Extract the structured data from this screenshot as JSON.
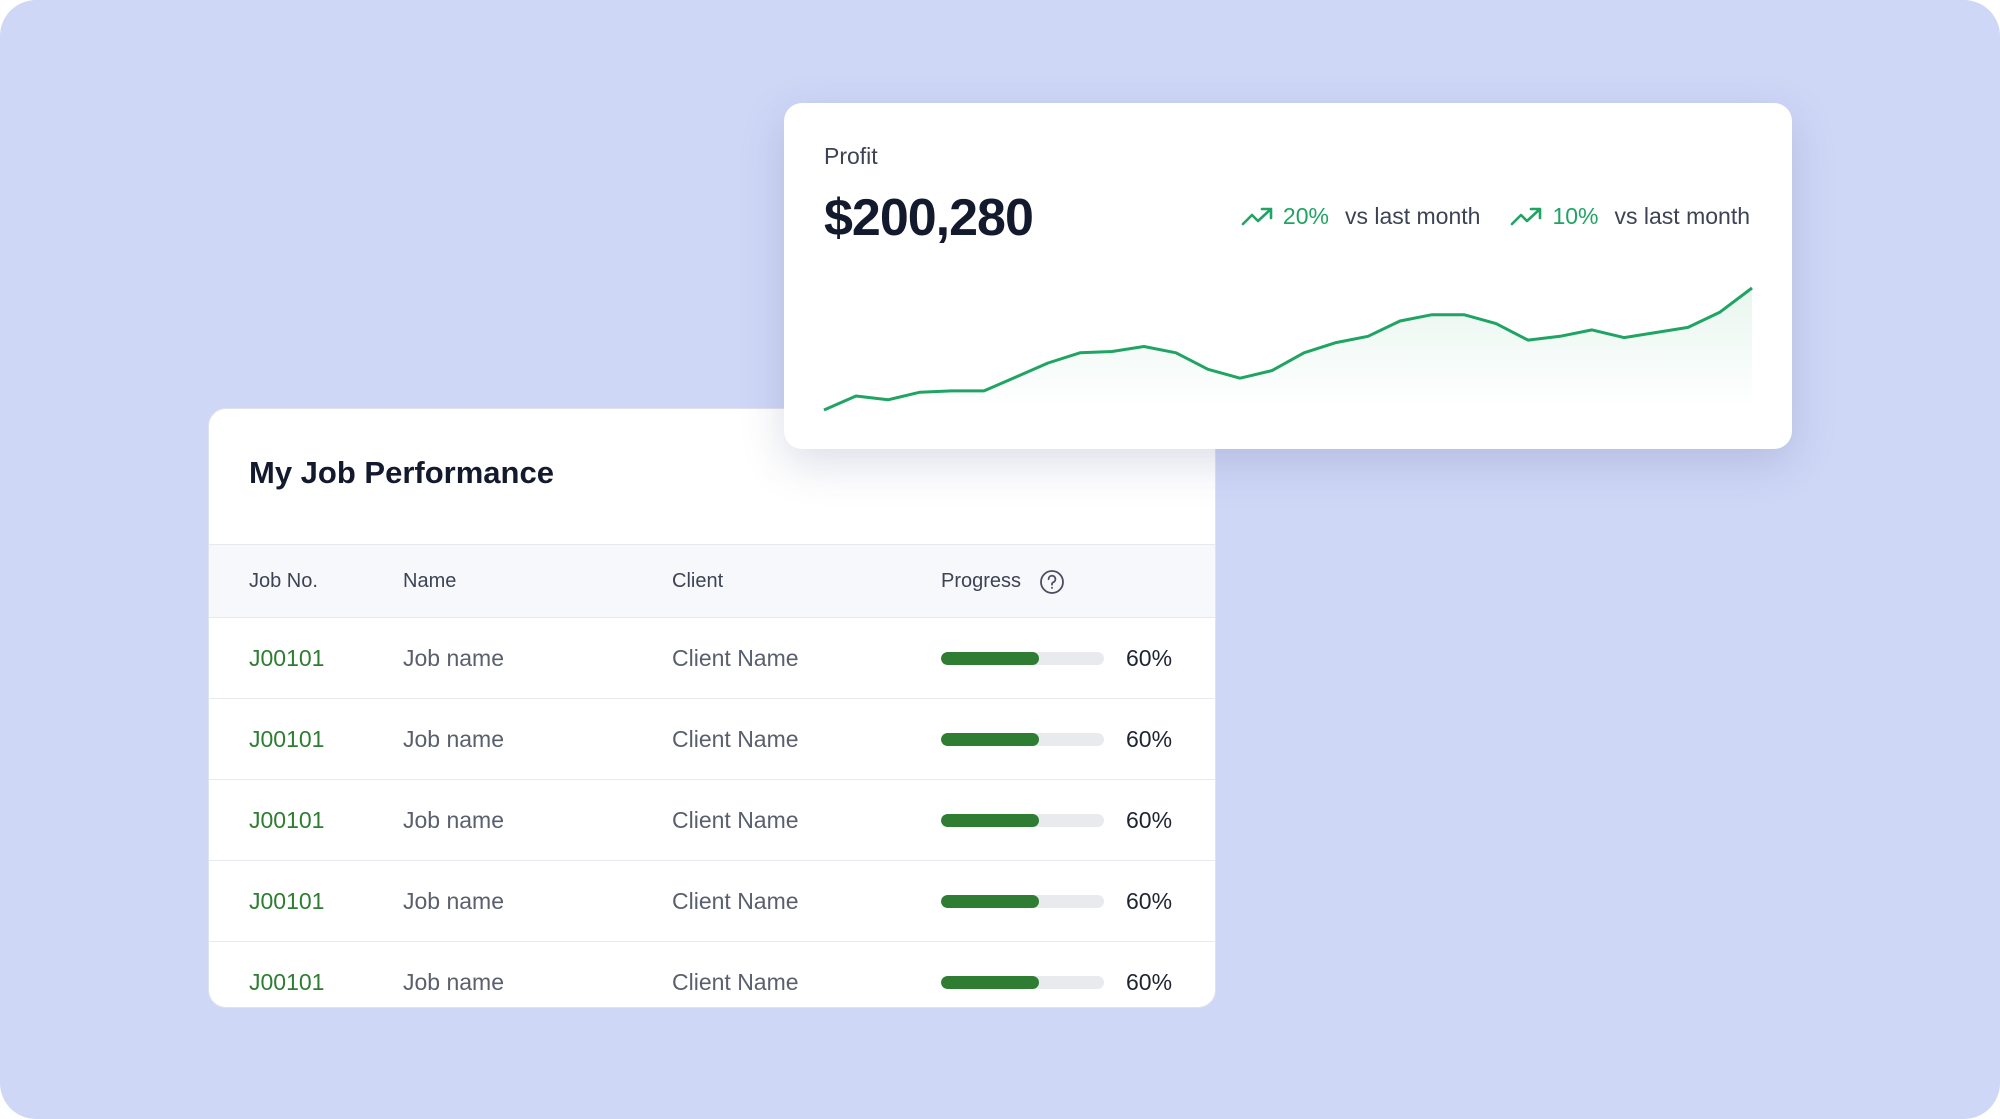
{
  "profit": {
    "label": "Profit",
    "amount": "$200,280",
    "badges": [
      {
        "value": "20%",
        "text": "vs last month"
      },
      {
        "value": "10%",
        "text": "vs last month"
      }
    ],
    "sparkline": {
      "values": [
        8,
        19,
        16,
        22,
        23,
        23,
        34,
        45,
        53,
        54,
        58,
        53,
        40,
        33,
        39,
        53,
        61,
        66,
        78,
        83,
        83,
        76,
        63,
        66,
        71,
        65,
        69,
        73,
        85,
        104
      ],
      "color": "#1fa463"
    }
  },
  "table": {
    "title": "My Job Performance",
    "columns": [
      "Job No.",
      "Name",
      "Client",
      "Progress"
    ],
    "rows": [
      {
        "job_no": "J00101",
        "name": "Job name",
        "client": "Client Name",
        "progress": {
          "value": 60,
          "label": "60%"
        }
      },
      {
        "job_no": "J00101",
        "name": "Job name",
        "client": "Client Name",
        "progress": {
          "value": 60,
          "label": "60%"
        }
      },
      {
        "job_no": "J00101",
        "name": "Job name",
        "client": "Client Name",
        "progress": {
          "value": 60,
          "label": "60%"
        }
      },
      {
        "job_no": "J00101",
        "name": "Job name",
        "client": "Client Name",
        "progress": {
          "value": 60,
          "label": "60%"
        }
      },
      {
        "job_no": "J00101",
        "name": "Job name",
        "client": "Client Name",
        "progress": {
          "value": 60,
          "label": "60%"
        }
      }
    ]
  }
}
